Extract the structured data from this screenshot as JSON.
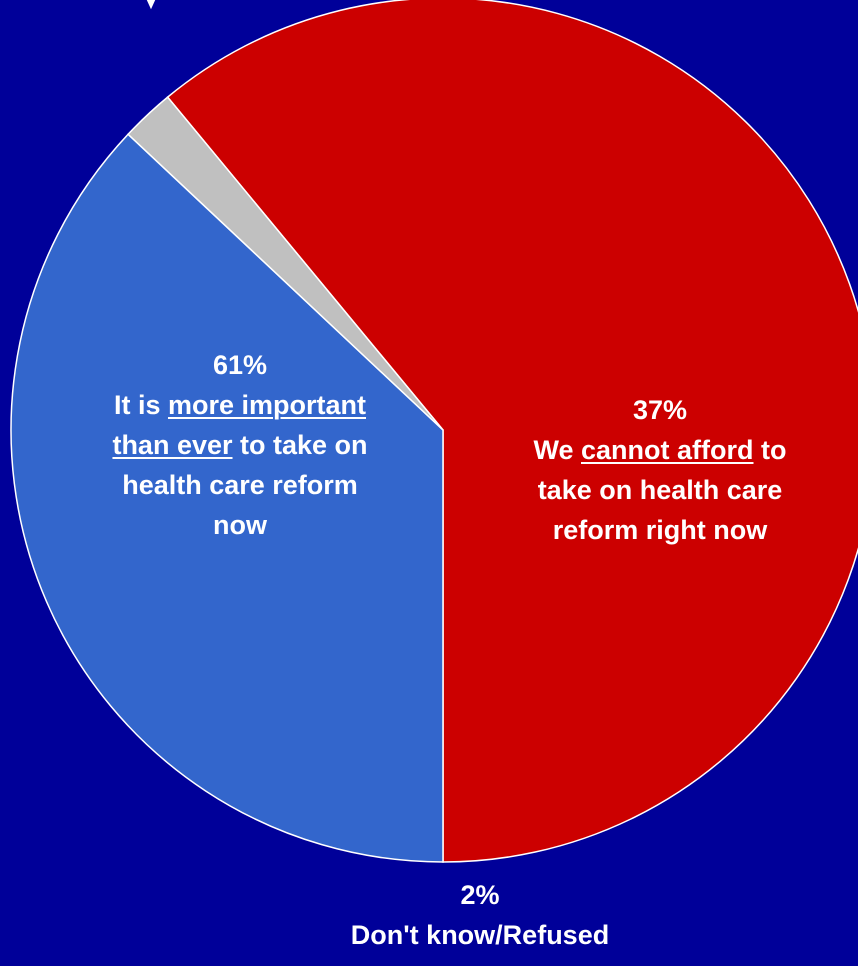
{
  "chart_data": {
    "type": "pie",
    "slices": [
      {
        "value": 61,
        "color": "#cc0000",
        "pct_label": "61%",
        "text_lines": [
          [
            {
              "t": "It is "
            },
            {
              "t": "more important",
              "u": true
            }
          ],
          [
            {
              "t": "than ever",
              "u": true
            },
            {
              "t": " to take on"
            }
          ],
          [
            {
              "t": "health care reform"
            }
          ],
          [
            {
              "t": "now"
            }
          ]
        ]
      },
      {
        "value": 37,
        "color": "#3366cc",
        "pct_label": "37%",
        "text_lines": [
          [
            {
              "t": "We "
            },
            {
              "t": "cannot afford",
              "u": true
            },
            {
              "t": " to"
            }
          ],
          [
            {
              "t": "take on health care"
            }
          ],
          [
            {
              "t": "reform right now"
            }
          ]
        ]
      },
      {
        "value": 2,
        "color": "#c0c0c0",
        "pct_label": "2%",
        "text_lines": [
          [
            {
              "t": "Don't know/Refused"
            }
          ]
        ]
      }
    ]
  }
}
